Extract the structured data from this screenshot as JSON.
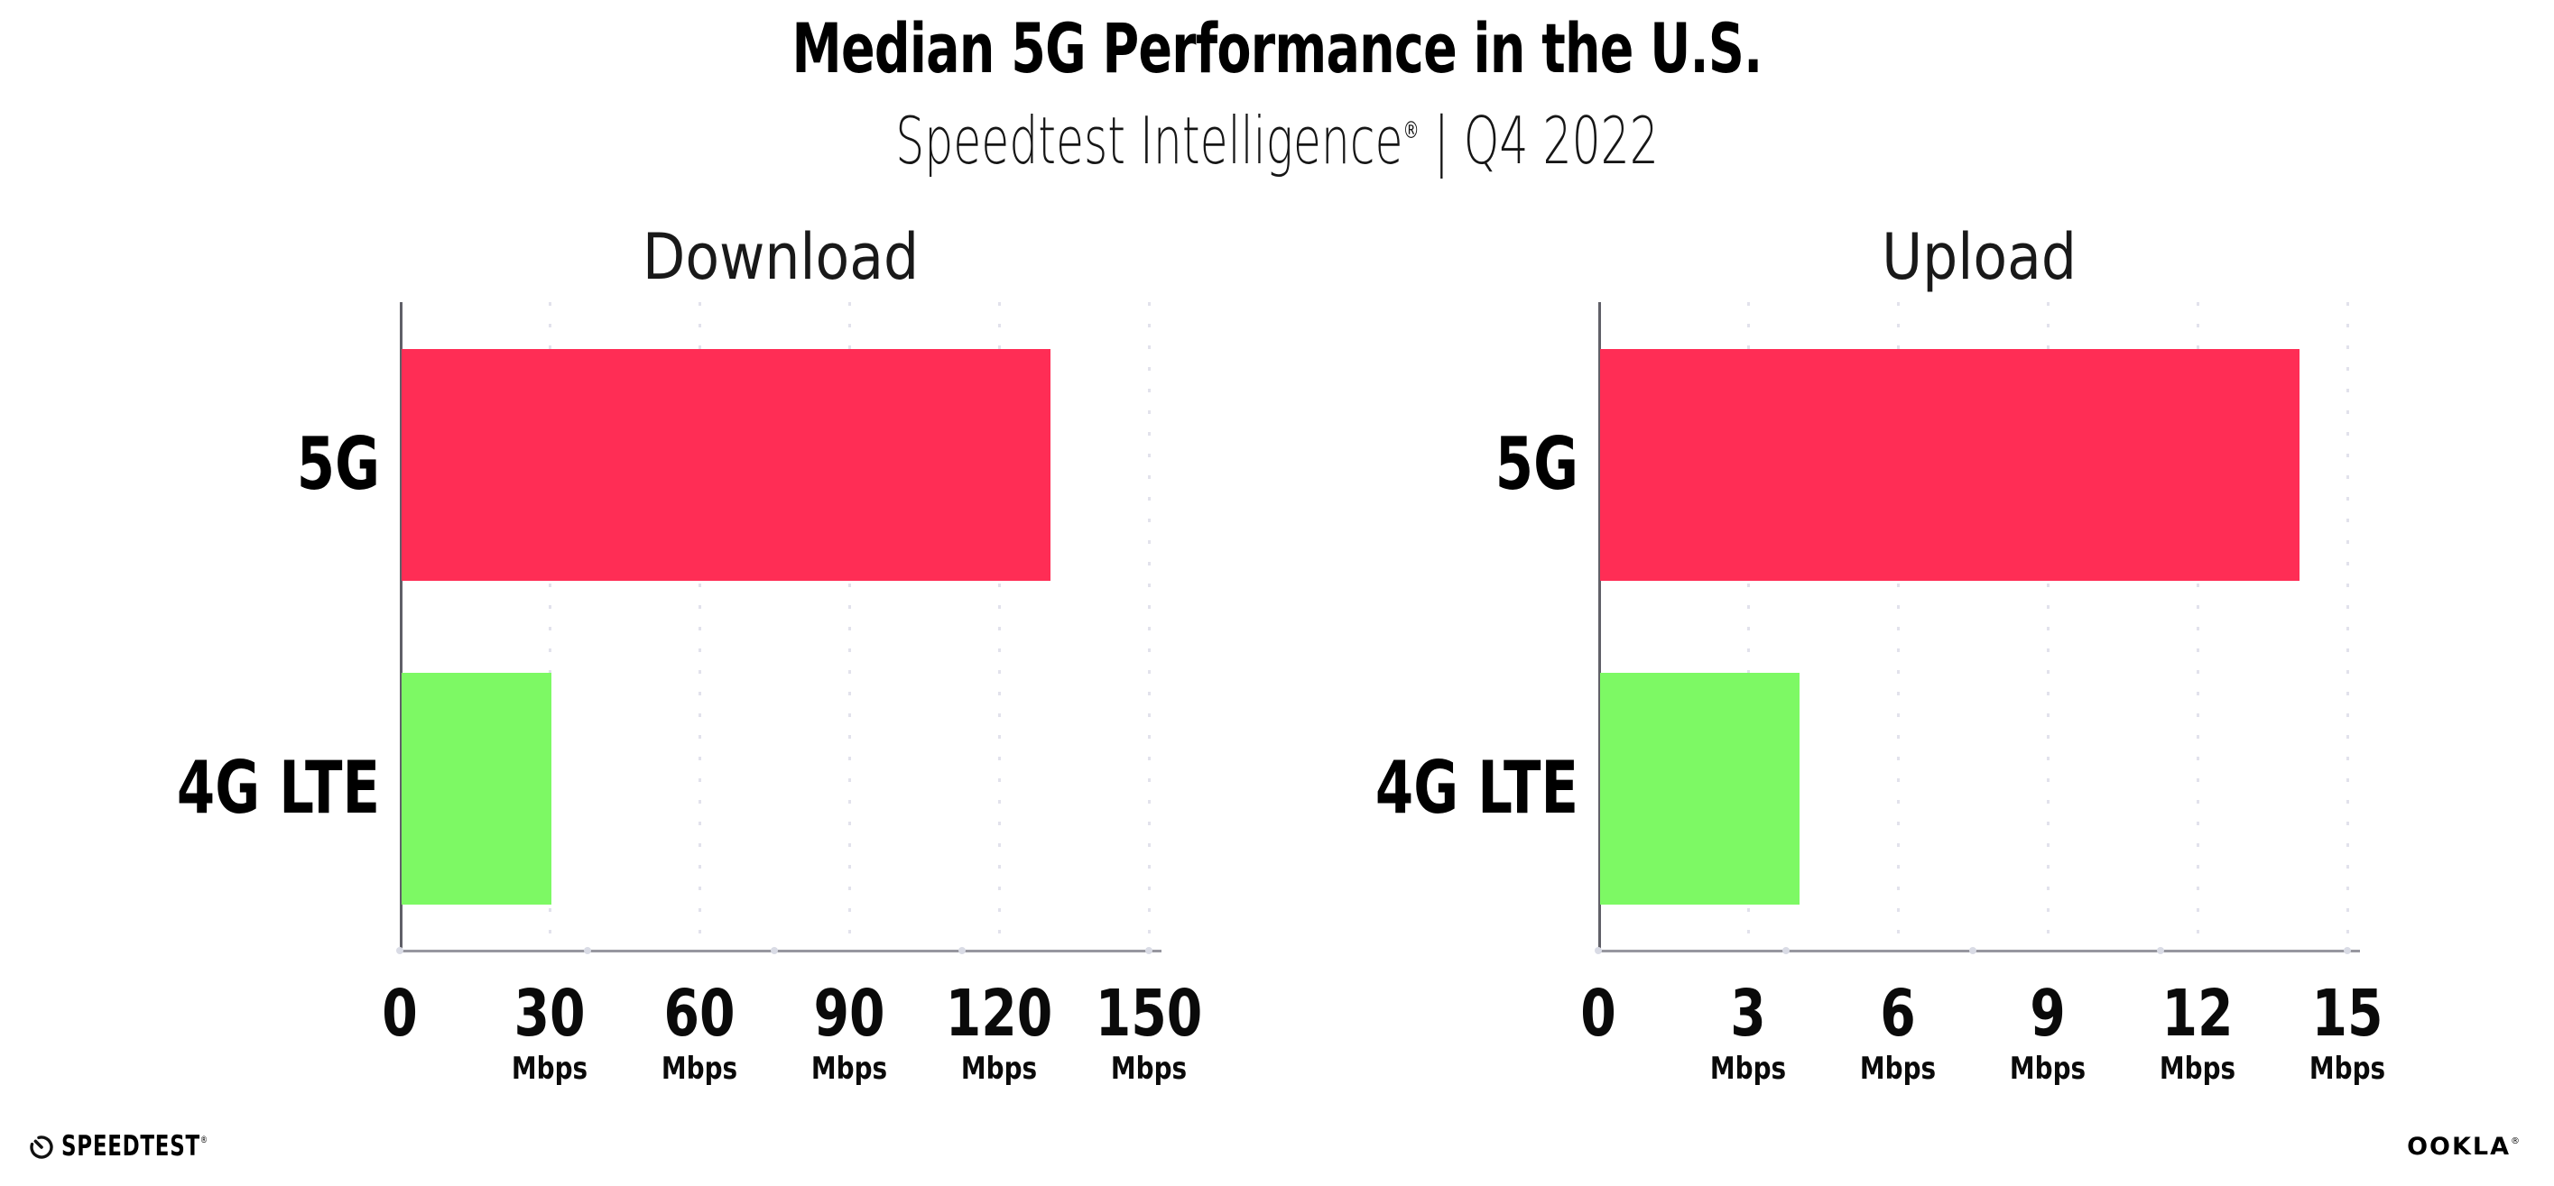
{
  "header": {
    "title": "Median 5G Performance in the U.S.",
    "subtitle_brand": "Speedtest Intelligence",
    "subtitle_reg": "®",
    "subtitle_rest": " | Q4 2022"
  },
  "colors": {
    "bar_5g": "#FF2D55",
    "bar_4g_lte": "#7DF964",
    "gridline": "#E2E2EC",
    "axis_line": "#97979F",
    "left_spine": "#606068",
    "text": "#000000"
  },
  "chart_data": [
    {
      "type": "bar",
      "orientation": "horizontal",
      "title": "Download",
      "categories": [
        "5G",
        "4G LTE"
      ],
      "values": [
        130,
        30
      ],
      "unit": "Mbps",
      "xlim": [
        0,
        150
      ],
      "xticks": [
        0,
        30,
        60,
        90,
        120,
        150
      ],
      "series_colors": [
        "#FF2D55",
        "#7DF964"
      ],
      "grid": "dotted-vertical",
      "legend": "none"
    },
    {
      "type": "bar",
      "orientation": "horizontal",
      "title": "Upload",
      "categories": [
        "5G",
        "4G LTE"
      ],
      "values": [
        14,
        4
      ],
      "unit": "Mbps",
      "xlim": [
        0,
        15
      ],
      "xticks": [
        0,
        3,
        6,
        9,
        12,
        15
      ],
      "series_colors": [
        "#FF2D55",
        "#7DF964"
      ],
      "grid": "dotted-vertical",
      "legend": "none"
    }
  ],
  "footer": {
    "speedtest_label": "SPEEDTEST",
    "speedtest_reg": "®",
    "ookla_label": "OOKLA",
    "ookla_reg": "®"
  }
}
